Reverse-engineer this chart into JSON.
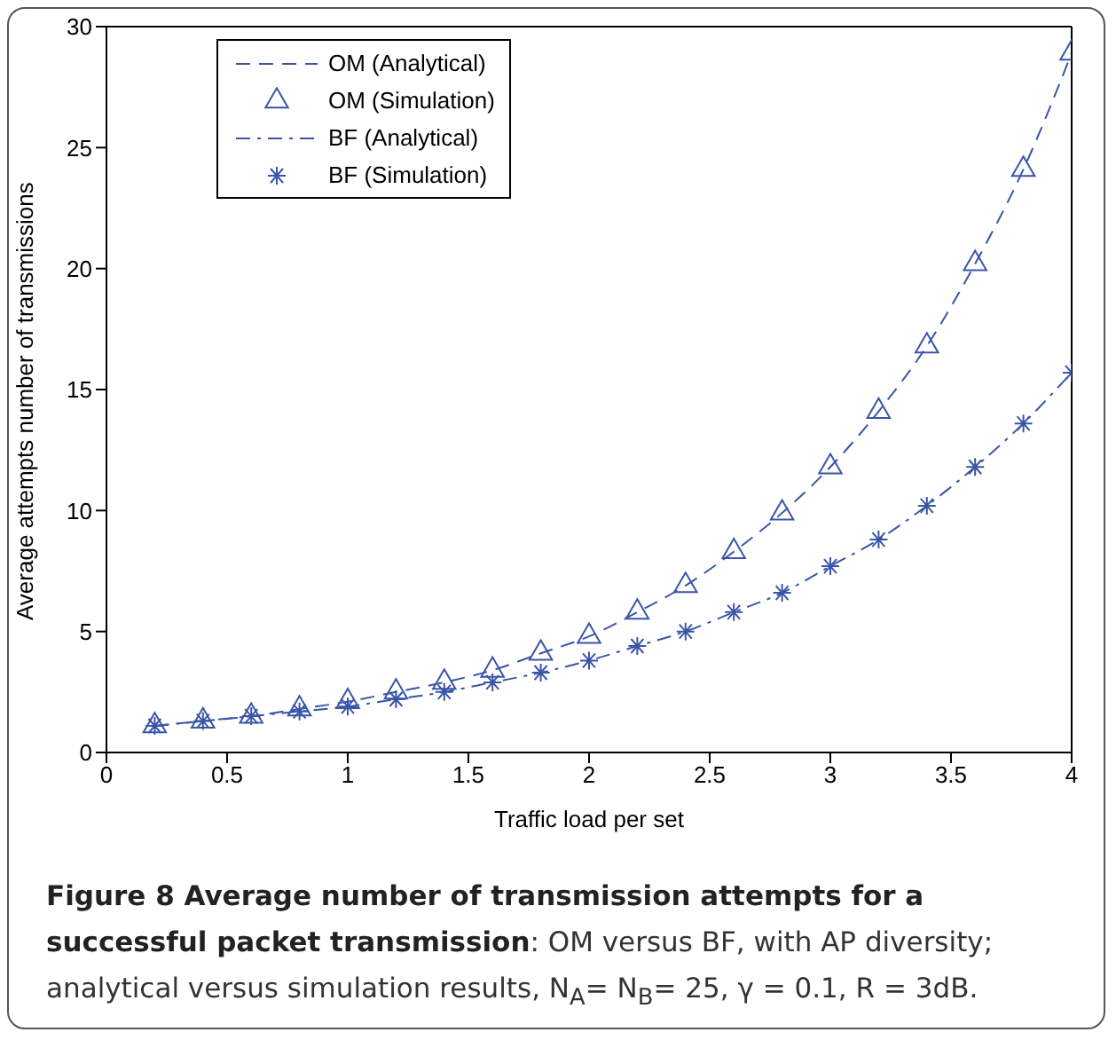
{
  "chart_data": {
    "type": "line",
    "title": "Figure 8 Average number of transmission attempts for a successful packet transmission",
    "annotations": [
      ": OM versus BF, with AP diversity; analytical versus simulation results, N$_{A}$= N$_{B}$= 25, γ = 0.1, R = 3dB."
    ],
    "xlabel": "Traffic load per set",
    "ylabel": "Average attempts number of transmissions",
    "x": [
      0.2,
      0.4,
      0.6,
      0.8,
      1.0,
      1.2,
      1.4,
      1.6,
      1.8,
      2.0,
      2.2,
      2.4,
      2.6,
      2.8,
      3.0,
      3.2,
      3.4,
      3.6,
      3.8,
      4.0
    ],
    "series": [
      {
        "name": "OM (Analytical)",
        "type": "line",
        "line_style": "dashed",
        "marker": "none",
        "color": "#3a55a8",
        "values": [
          1.1,
          1.3,
          1.5,
          1.8,
          2.1,
          2.5,
          2.9,
          3.4,
          4.1,
          4.8,
          5.8,
          6.9,
          8.3,
          9.9,
          11.8,
          14.1,
          16.8,
          20.2,
          24.1,
          28.9
        ]
      },
      {
        "name": "OM (Simulation)",
        "type": "scatter",
        "marker": "triangle",
        "color": "#3a55a8",
        "values": [
          1.1,
          1.3,
          1.5,
          1.8,
          2.1,
          2.5,
          2.9,
          3.4,
          4.1,
          4.8,
          5.8,
          6.9,
          8.3,
          9.9,
          11.8,
          14.1,
          16.8,
          20.2,
          24.1,
          28.9
        ]
      },
      {
        "name": "BF (Analytical)",
        "type": "line",
        "line_style": "dashdot",
        "marker": "none",
        "color": "#3a55a8",
        "values": [
          1.1,
          1.3,
          1.5,
          1.7,
          1.9,
          2.2,
          2.5,
          2.9,
          3.3,
          3.8,
          4.4,
          5.0,
          5.8,
          6.6,
          7.7,
          8.8,
          10.2,
          11.8,
          13.6,
          15.7
        ]
      },
      {
        "name": "BF (Simulation)",
        "type": "scatter",
        "marker": "cross",
        "color": "#3a55a8",
        "values": [
          1.1,
          1.3,
          1.5,
          1.7,
          1.9,
          2.2,
          2.5,
          2.9,
          3.3,
          3.8,
          4.4,
          5.0,
          5.8,
          6.6,
          7.7,
          8.8,
          10.2,
          11.8,
          13.6,
          15.7
        ]
      }
    ],
    "xlim": [
      0,
      4
    ],
    "xticks": [
      0,
      0.5,
      1,
      1.5,
      2,
      2.5,
      3,
      3.5,
      4
    ],
    "ylim": [
      0,
      30
    ],
    "yticks": [
      0,
      5,
      10,
      15,
      20,
      25,
      30
    ],
    "grid": false,
    "legend": "top left"
  }
}
